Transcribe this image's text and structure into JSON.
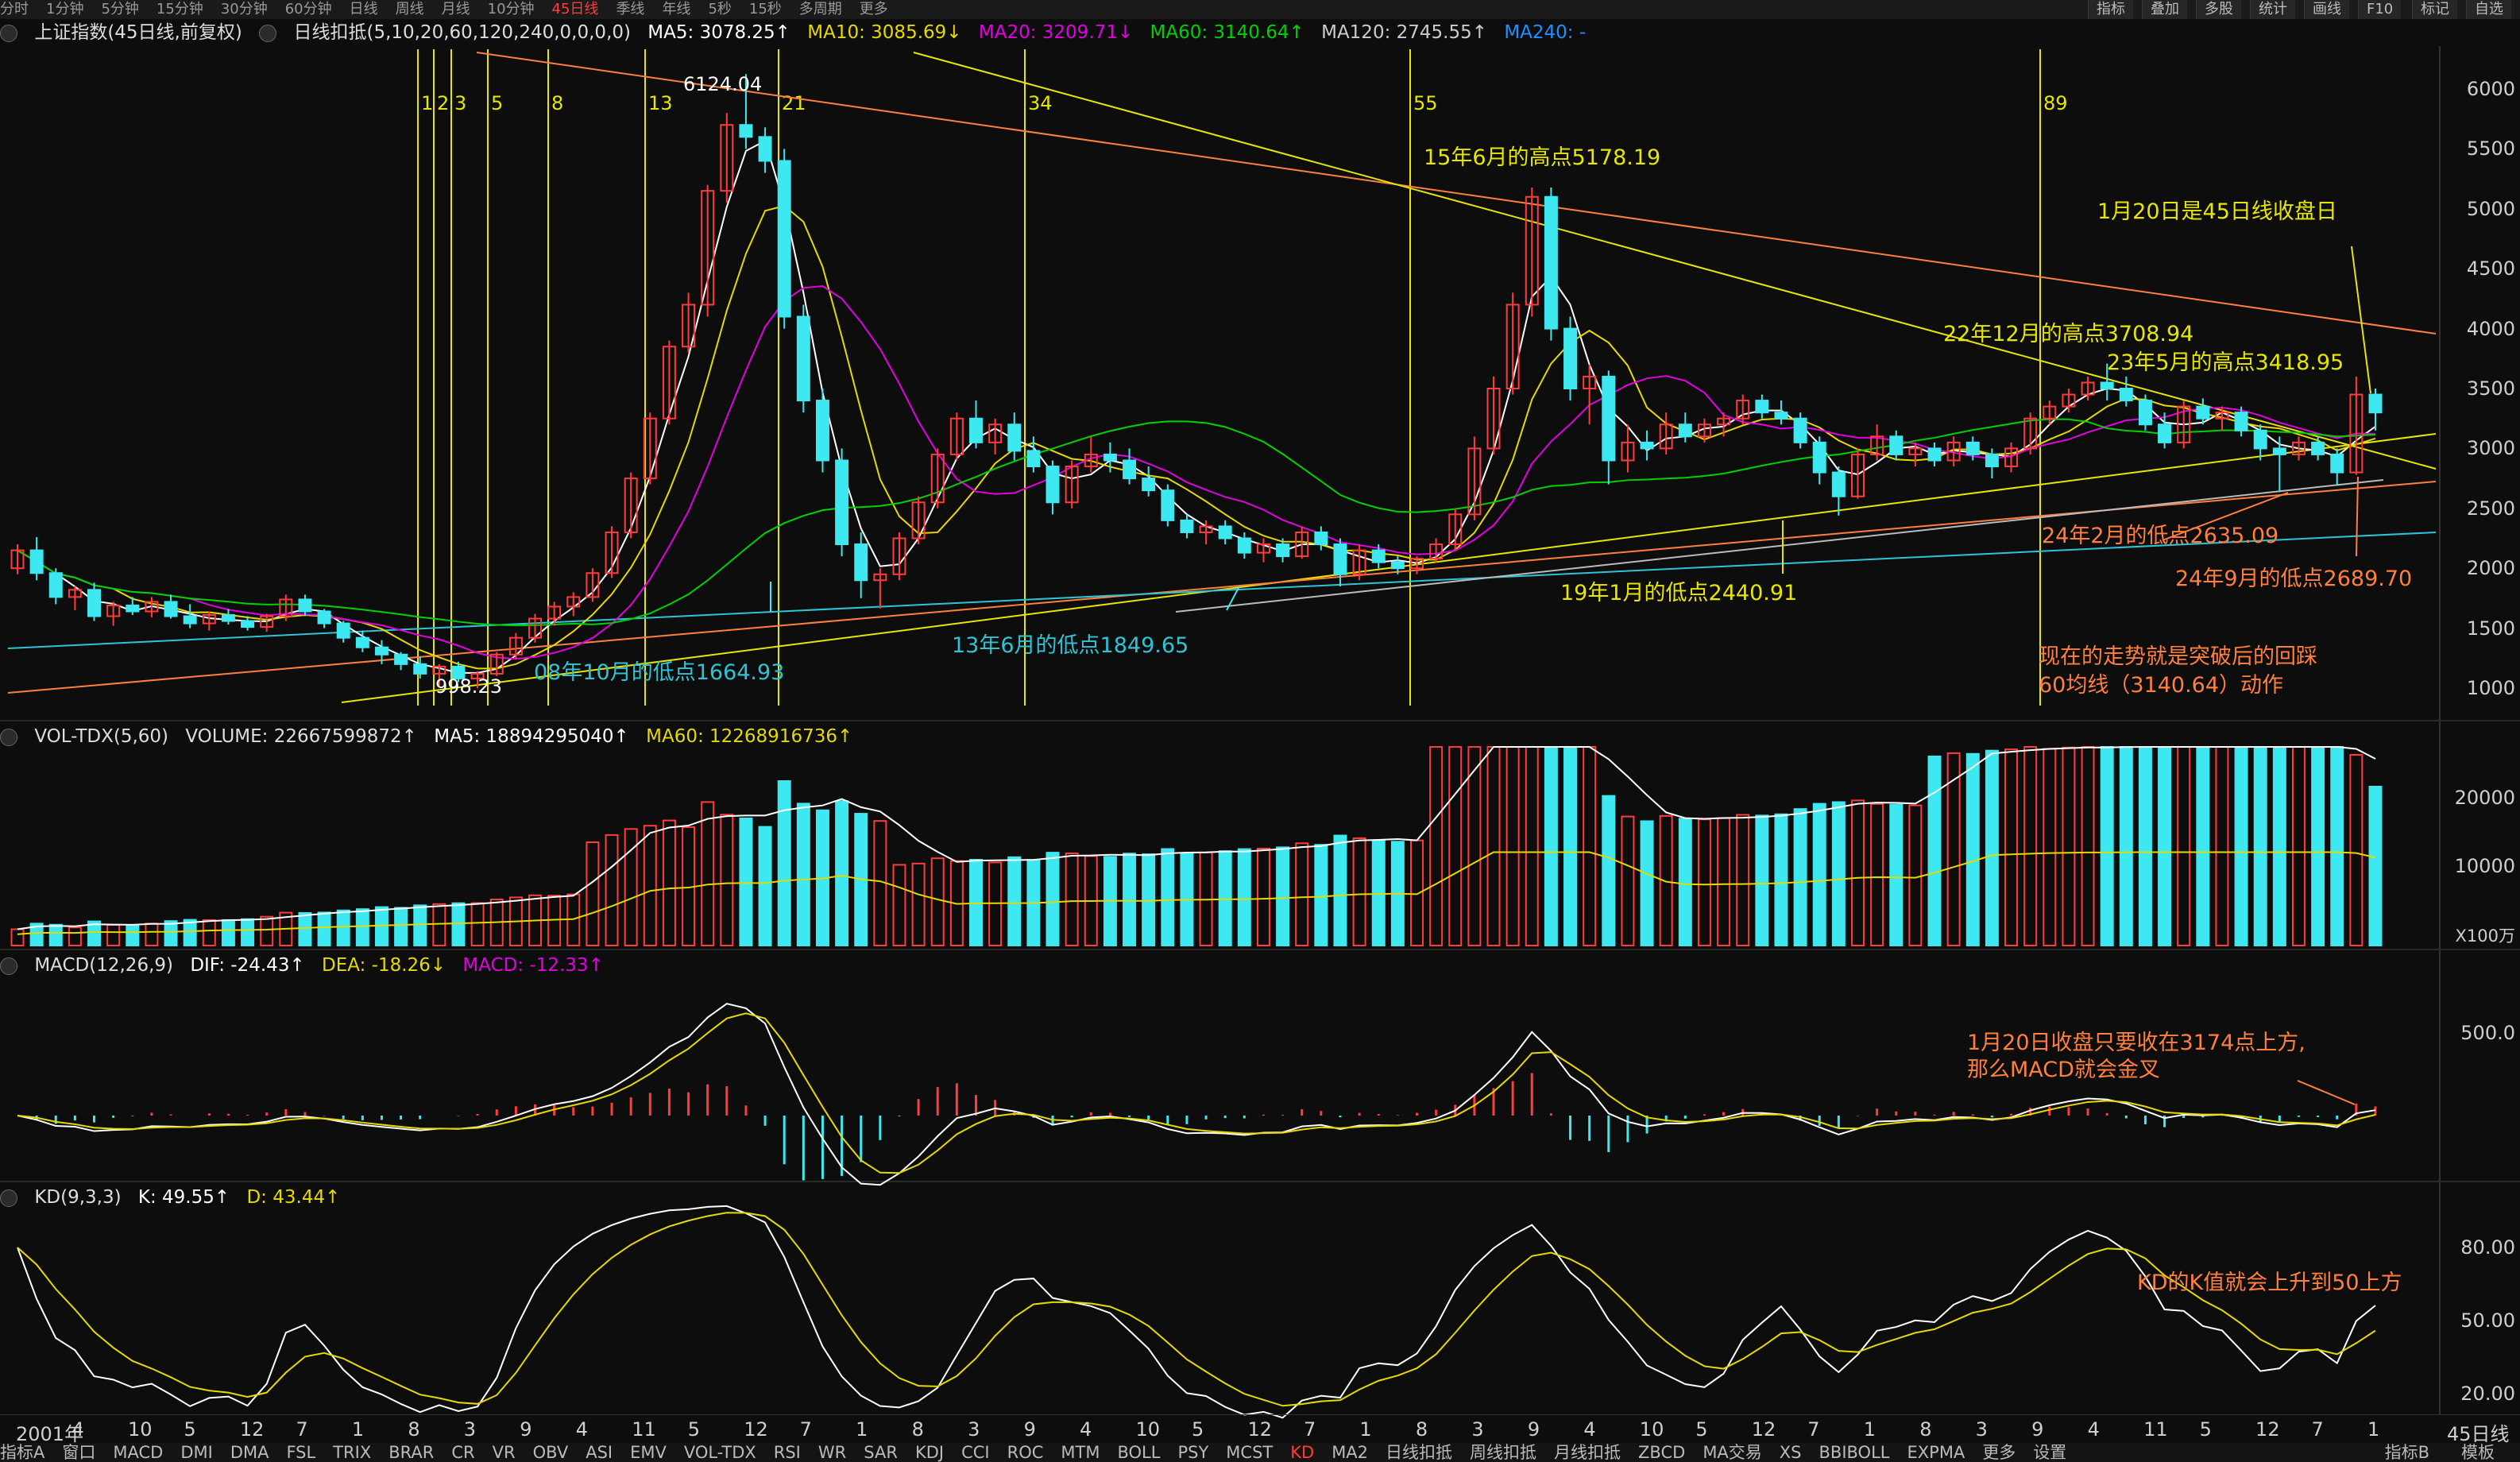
{
  "top_tabs": [
    "分时",
    "1分钟",
    "5分钟",
    "15分钟",
    "30分钟",
    "60分钟",
    "日线",
    "周线",
    "月线",
    "10分钟",
    "45日线",
    "季线",
    "年线",
    "5秒",
    "15秒",
    "多周期",
    "更多"
  ],
  "top_active": "45日线",
  "top_right": [
    "指标",
    "叠加",
    "多股",
    "统计",
    "画线",
    "F10",
    "标记",
    "自选"
  ],
  "main_info": {
    "title": "上证指数(45日线,前复权)",
    "indicator": "日线扣抵(5,10,20,60,120,240,0,0,0,0)",
    "ma5": "MA5: 3078.25↑",
    "ma10": "MA10: 3085.69↓",
    "ma20": "MA20: 3209.71↓",
    "ma60": "MA60: 3140.64↑",
    "ma120": "MA120: 2745.55↑",
    "ma240": "MA240: -"
  },
  "vol_info": {
    "title": "VOL-TDX(5,60)",
    "volume": "VOLUME: 22667599872↑",
    "ma5": "MA5: 18894295040↑",
    "ma60": "MA60: 12268916736↑"
  },
  "macd_info": {
    "title": "MACD(12,26,9)",
    "dif": "DIF: -24.43↑",
    "dea": "DEA: -18.26↓",
    "macd": "MACD: -12.33↑"
  },
  "kd_info": {
    "title": "KD(9,3,3)",
    "k": "K: 49.55↑",
    "d": "D: 43.44↑"
  },
  "price_axis": [
    "6000",
    "5500",
    "5000",
    "4500",
    "4000",
    "3500",
    "3000",
    "2500",
    "2000",
    "1500",
    "1000"
  ],
  "vol_axis": [
    "20000",
    "10000"
  ],
  "vol_unit": "X100万",
  "macd_axis": [
    "500.0"
  ],
  "kd_axis": [
    "80.00",
    "50.00",
    "20.00"
  ],
  "x_labels": [
    "2001年",
    "4",
    "10",
    "5",
    "12",
    "7",
    "1",
    "8",
    "3",
    "9",
    "4",
    "11",
    "5",
    "12",
    "7",
    "1",
    "8",
    "3",
    "9",
    "4",
    "10",
    "5",
    "12",
    "7",
    "1",
    "8",
    "3",
    "9",
    "4",
    "10",
    "5",
    "12",
    "7",
    "1",
    "8",
    "3",
    "9",
    "4",
    "11",
    "5",
    "12",
    "7",
    "1"
  ],
  "period_label": "45日线",
  "fib_numbers": [
    "1",
    "2",
    "3",
    "5",
    "8",
    "13",
    "21",
    "34",
    "55",
    "89"
  ],
  "annotations": {
    "peak_2007": "6124.04",
    "low_2005": "998.23",
    "low_2008": "08年10月的低点1664.93",
    "low_2013": "13年6月的低点1849.65",
    "high_2015": "15年6月的高点5178.19",
    "low_2019": "19年1月的低点2440.91",
    "high_2022": "22年12月的高点3708.94",
    "high_2023": "23年5月的高点3418.95",
    "close_note": "1月20日是45日线收盘日",
    "low_2024_2": "24年2月的低点2635.09",
    "low_2024_9": "24年9月的低点2689.70",
    "trend_note_1": "现在的走势就是突破后的回踩",
    "trend_note_2": "60均线（3140.64）动作",
    "macd_note_1": "1月20日收盘只要收在3174点上方,",
    "macd_note_2": "那么MACD就会金叉",
    "kd_note": "KD的K值就会上升到50上方"
  },
  "bottom_tabs": [
    "指标A",
    "窗口",
    "MACD",
    "DMI",
    "DMA",
    "FSL",
    "TRIX",
    "BRAR",
    "CR",
    "VR",
    "OBV",
    "ASI",
    "EMV",
    "VOL-TDX",
    "RSI",
    "WR",
    "SAR",
    "KDJ",
    "CCI",
    "ROC",
    "MTM",
    "BOLL",
    "PSY",
    "MCST",
    "KD",
    "MA2",
    "日线扣抵",
    "周线扣抵",
    "月线扣抵",
    "ZBCD",
    "MA交易",
    "XS",
    "BBIBOLL",
    "EXPMA",
    "更多",
    "设置"
  ],
  "bottom_active": "KD",
  "bottom_right": [
    "指标B",
    "模板"
  ],
  "colors": {
    "up": "#ff3b3b",
    "down": "#3de8f0",
    "ma5": "#ffffff",
    "ma10": "#e6d800",
    "ma20": "#e000e0",
    "ma60": "#00d000",
    "ma120": "#cccccc",
    "ma240": "#1e90ff",
    "trend_orange": "#ff7f3f",
    "trend_yellow": "#e6e600",
    "trend_cyan": "#2ec4d6"
  },
  "chart_data": {
    "type": "candlestick",
    "title": "上证指数(45日线,前复权)",
    "ylim": [
      900,
      6300
    ],
    "candles": [
      [
        2000,
        2200,
        1950,
        2150
      ],
      [
        2150,
        2260,
        1900,
        1960
      ],
      [
        1960,
        2000,
        1700,
        1760
      ],
      [
        1760,
        1850,
        1650,
        1820
      ],
      [
        1820,
        1880,
        1560,
        1600
      ],
      [
        1600,
        1720,
        1520,
        1690
      ],
      [
        1690,
        1760,
        1610,
        1640
      ],
      [
        1640,
        1760,
        1590,
        1720
      ],
      [
        1720,
        1780,
        1580,
        1600
      ],
      [
        1600,
        1700,
        1500,
        1540
      ],
      [
        1540,
        1640,
        1480,
        1610
      ],
      [
        1610,
        1660,
        1530,
        1560
      ],
      [
        1560,
        1600,
        1480,
        1510
      ],
      [
        1510,
        1620,
        1470,
        1600
      ],
      [
        1600,
        1780,
        1560,
        1740
      ],
      [
        1740,
        1780,
        1600,
        1640
      ],
      [
        1640,
        1660,
        1500,
        1540
      ],
      [
        1540,
        1560,
        1380,
        1420
      ],
      [
        1420,
        1480,
        1300,
        1340
      ],
      [
        1340,
        1400,
        1200,
        1280
      ],
      [
        1280,
        1300,
        1150,
        1200
      ],
      [
        1200,
        1260,
        1080,
        1120
      ],
      [
        1120,
        1200,
        1020,
        1180
      ],
      [
        1180,
        1220,
        1050,
        1080
      ],
      [
        1080,
        1140,
        998,
        1120
      ],
      [
        1120,
        1300,
        1100,
        1280
      ],
      [
        1280,
        1460,
        1240,
        1420
      ],
      [
        1420,
        1620,
        1380,
        1580
      ],
      [
        1580,
        1720,
        1520,
        1680
      ],
      [
        1680,
        1800,
        1600,
        1760
      ],
      [
        1760,
        2000,
        1720,
        1960
      ],
      [
        1960,
        2350,
        1920,
        2300
      ],
      [
        2300,
        2800,
        2250,
        2750
      ],
      [
        2750,
        3300,
        2700,
        3250
      ],
      [
        3250,
        3900,
        3200,
        3850
      ],
      [
        3850,
        4300,
        3800,
        4200
      ],
      [
        4200,
        5200,
        4100,
        5150
      ],
      [
        5150,
        5800,
        5050,
        5700
      ],
      [
        5700,
        6124,
        5500,
        5600
      ],
      [
        5600,
        5680,
        5300,
        5400
      ],
      [
        5400,
        5500,
        4000,
        4100
      ],
      [
        4100,
        4200,
        3300,
        3400
      ],
      [
        3400,
        3500,
        2800,
        2900
      ],
      [
        2900,
        3000,
        2100,
        2200
      ],
      [
        2200,
        2300,
        1750,
        1900
      ],
      [
        1900,
        2000,
        1664,
        1950
      ],
      [
        1950,
        2300,
        1900,
        2250
      ],
      [
        2250,
        2600,
        2200,
        2550
      ],
      [
        2550,
        3000,
        2500,
        2950
      ],
      [
        2950,
        3300,
        2900,
        3250
      ],
      [
        3250,
        3400,
        3000,
        3050
      ],
      [
        3050,
        3250,
        2950,
        3200
      ],
      [
        3200,
        3300,
        2900,
        2980
      ],
      [
        2980,
        3100,
        2800,
        2850
      ],
      [
        2850,
        2900,
        2450,
        2550
      ],
      [
        2550,
        2900,
        2500,
        2850
      ],
      [
        2850,
        3100,
        2800,
        2950
      ],
      [
        2950,
        3050,
        2800,
        2900
      ],
      [
        2900,
        3000,
        2700,
        2750
      ],
      [
        2750,
        2850,
        2600,
        2650
      ],
      [
        2650,
        2700,
        2350,
        2400
      ],
      [
        2400,
        2450,
        2250,
        2300
      ],
      [
        2300,
        2400,
        2200,
        2350
      ],
      [
        2350,
        2400,
        2200,
        2250
      ],
      [
        2250,
        2300,
        2080,
        2130
      ],
      [
        2130,
        2250,
        2050,
        2200
      ],
      [
        2200,
        2250,
        2050,
        2100
      ],
      [
        2100,
        2350,
        2080,
        2300
      ],
      [
        2300,
        2350,
        2150,
        2200
      ],
      [
        2200,
        2250,
        1849,
        1950
      ],
      [
        1950,
        2200,
        1900,
        2150
      ],
      [
        2150,
        2200,
        2000,
        2050
      ],
      [
        2050,
        2100,
        1950,
        2000
      ],
      [
        2000,
        2100,
        1950,
        2080
      ],
      [
        2080,
        2250,
        2050,
        2200
      ],
      [
        2200,
        2500,
        2150,
        2450
      ],
      [
        2450,
        3100,
        2400,
        3000
      ],
      [
        3000,
        3600,
        2950,
        3500
      ],
      [
        3500,
        4300,
        3450,
        4200
      ],
      [
        4200,
        5178,
        4100,
        5100
      ],
      [
        5100,
        5178,
        3900,
        4000
      ],
      [
        4000,
        4100,
        3400,
        3500
      ],
      [
        3500,
        3700,
        3200,
        3600
      ],
      [
        3600,
        3650,
        2700,
        2900
      ],
      [
        2900,
        3200,
        2800,
        3050
      ],
      [
        3050,
        3150,
        2900,
        3000
      ],
      [
        3000,
        3300,
        2950,
        3200
      ],
      [
        3200,
        3300,
        3050,
        3100
      ],
      [
        3100,
        3250,
        3050,
        3200
      ],
      [
        3200,
        3300,
        3100,
        3250
      ],
      [
        3250,
        3450,
        3200,
        3400
      ],
      [
        3400,
        3450,
        3250,
        3300
      ],
      [
        3300,
        3400,
        3200,
        3250
      ],
      [
        3250,
        3300,
        3000,
        3050
      ],
      [
        3050,
        3100,
        2700,
        2800
      ],
      [
        2800,
        2850,
        2440,
        2600
      ],
      [
        2600,
        3000,
        2580,
        2950
      ],
      [
        2950,
        3200,
        2900,
        3100
      ],
      [
        3100,
        3150,
        2900,
        2950
      ],
      [
        2950,
        3050,
        2850,
        3000
      ],
      [
        3000,
        3050,
        2850,
        2900
      ],
      [
        2900,
        3100,
        2850,
        3050
      ],
      [
        3050,
        3100,
        2900,
        2950
      ],
      [
        2950,
        3000,
        2750,
        2850
      ],
      [
        2850,
        3050,
        2800,
        3000
      ],
      [
        3000,
        3300,
        2950,
        3250
      ],
      [
        3250,
        3400,
        3200,
        3350
      ],
      [
        3350,
        3500,
        3300,
        3450
      ],
      [
        3450,
        3600,
        3400,
        3550
      ],
      [
        3550,
        3708,
        3400,
        3500
      ],
      [
        3500,
        3600,
        3350,
        3400
      ],
      [
        3400,
        3450,
        3150,
        3200
      ],
      [
        3200,
        3300,
        3000,
        3050
      ],
      [
        3050,
        3400,
        3000,
        3350
      ],
      [
        3350,
        3418,
        3200,
        3250
      ],
      [
        3250,
        3350,
        3150,
        3300
      ],
      [
        3300,
        3350,
        3100,
        3150
      ],
      [
        3150,
        3200,
        2900,
        3000
      ],
      [
        3000,
        3100,
        2635,
        2950
      ],
      [
        2950,
        3100,
        2900,
        3050
      ],
      [
        3050,
        3100,
        2900,
        2950
      ],
      [
        2950,
        3000,
        2689,
        2800
      ],
      [
        2800,
        3600,
        2780,
        3450
      ],
      [
        3450,
        3500,
        3150,
        3300
      ]
    ],
    "ma60_last": 3140.64,
    "volume_unit": "X100万"
  }
}
